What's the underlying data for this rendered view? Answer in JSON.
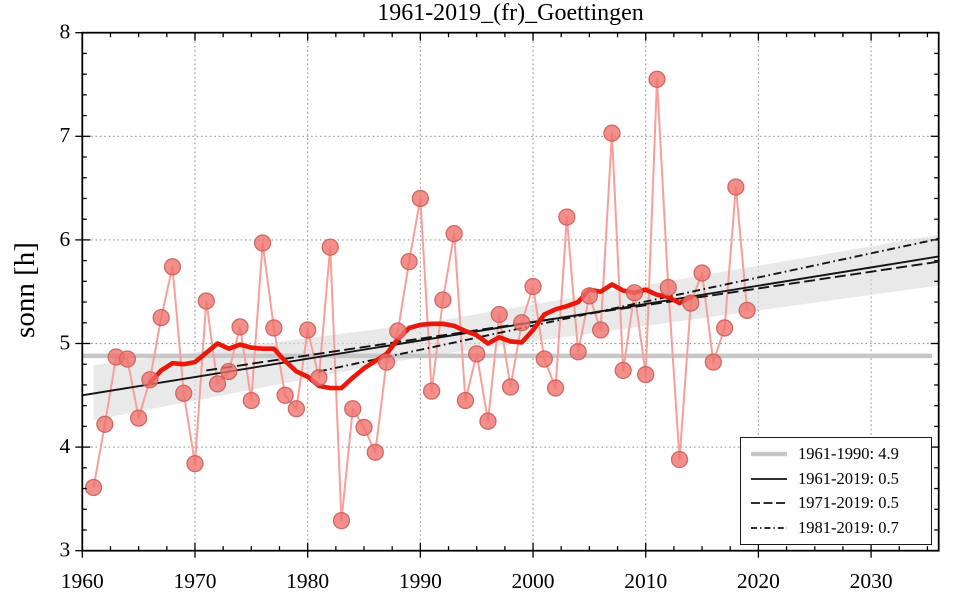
{
  "figure": {
    "title": "1961-2019_(fr)_Goettingen",
    "ylabel": "sonn [h]"
  },
  "chart_data": {
    "type": "line",
    "title": "1961-2019_(fr)_Goettingen",
    "xlabel": "",
    "ylabel": "sonn [h]",
    "xlim": [
      1960,
      2036
    ],
    "ylim": [
      3,
      8
    ],
    "grid": true,
    "x_ticks": [
      1960,
      1970,
      1980,
      1990,
      2000,
      2010,
      2020,
      2030
    ],
    "x_tick_labels": [
      "1960",
      "1970",
      "1980",
      "1990",
      "2000",
      "2010",
      "2020",
      "2030"
    ],
    "y_ticks": [
      3,
      4,
      5,
      6,
      7,
      8
    ],
    "y_tick_labels": [
      "3",
      "4",
      "5",
      "6",
      "7",
      "8"
    ],
    "x_minor_step": 2.5,
    "y_minor_step": 0.2,
    "years": [
      1961,
      1962,
      1963,
      1964,
      1965,
      1966,
      1967,
      1968,
      1969,
      1970,
      1971,
      1972,
      1973,
      1974,
      1975,
      1976,
      1977,
      1978,
      1979,
      1980,
      1981,
      1982,
      1983,
      1984,
      1985,
      1986,
      1987,
      1988,
      1989,
      1990,
      1991,
      1992,
      1993,
      1994,
      1995,
      1996,
      1997,
      1998,
      1999,
      2000,
      2001,
      2002,
      2003,
      2004,
      2005,
      2006,
      2007,
      2008,
      2009,
      2010,
      2011,
      2012,
      2013,
      2014,
      2015,
      2016,
      2017,
      2018,
      2019
    ],
    "annual_values": [
      3.61,
      4.22,
      4.87,
      4.85,
      4.28,
      4.65,
      5.25,
      5.74,
      4.52,
      3.84,
      5.41,
      4.61,
      4.73,
      5.16,
      4.45,
      5.97,
      5.15,
      4.5,
      4.37,
      5.13,
      4.67,
      5.93,
      3.29,
      4.37,
      4.19,
      3.95,
      4.82,
      5.12,
      5.79,
      6.4,
      4.54,
      5.42,
      6.06,
      4.45,
      4.9,
      4.25,
      5.28,
      4.58,
      5.2,
      5.55,
      4.85,
      4.57,
      6.22,
      4.92,
      5.46,
      5.13,
      7.03,
      4.74,
      5.49,
      4.7,
      7.55,
      5.54,
      3.88,
      5.39,
      5.68,
      4.82,
      5.15,
      6.51,
      5.32
    ],
    "smoothed_11yr": {
      "start_year": 1966,
      "values": [
        4.62,
        4.74,
        4.81,
        4.8,
        4.82,
        4.91,
        5.0,
        4.95,
        4.99,
        4.96,
        4.95,
        4.95,
        4.83,
        4.73,
        4.68,
        4.59,
        4.57,
        4.57,
        4.67,
        4.76,
        4.83,
        4.9,
        5.04,
        5.15,
        5.18,
        5.19,
        5.19,
        5.17,
        5.12,
        5.08,
        5.0,
        5.06,
        5.02,
        5.01,
        5.13,
        5.28,
        5.33,
        5.36,
        5.4,
        5.52,
        5.5,
        5.57,
        5.51,
        5.49,
        5.52,
        5.47,
        5.45,
        5.39,
        5.45
      ]
    },
    "reference_mean": {
      "label": "1961-1990: 4.9",
      "value": 4.88,
      "x_from": 1960,
      "x_to": 2035.4
    },
    "trend_lines": [
      {
        "name": "trend-1961-2019",
        "label": "1961-2019: 0.5",
        "style": "solid",
        "x": [
          1960,
          2036
        ],
        "y": [
          4.5,
          5.84
        ]
      },
      {
        "name": "trend-1971-2019",
        "label": "1971-2019: 0.5",
        "style": "dashed",
        "x": [
          1971,
          2036
        ],
        "y": [
          4.74,
          5.79
        ]
      },
      {
        "name": "trend-1981-2019",
        "label": "1981-2019: 0.7",
        "style": "dashdot",
        "x": [
          1981,
          2036
        ],
        "y": [
          4.73,
          6.01
        ]
      }
    ],
    "confidence_band": {
      "upper": [
        [
          1961,
          4.79
        ],
        [
          1990,
          5.19
        ],
        [
          2036,
          6.05
        ]
      ],
      "lower": [
        [
          1961,
          4.26
        ],
        [
          1990,
          4.87
        ],
        [
          2036,
          5.56
        ]
      ]
    },
    "legend": {
      "position": "lower right",
      "items": [
        {
          "label": "1961-1990: 4.9",
          "style": "solid-thick-gray"
        },
        {
          "label": "1961-2019: 0.5",
          "style": "solid-black"
        },
        {
          "label": "1971-2019: 0.5",
          "style": "dashed-black"
        },
        {
          "label": "1981-2019: 0.7",
          "style": "dashdot-black"
        }
      ]
    }
  },
  "colors": {
    "marker_fill": "#ef6f6a",
    "marker_edge": "#cb5f5b",
    "annual_line": "#f79f9b",
    "smoothed_line": "#e8190b",
    "trend_black": "#141414",
    "reference_gray": "#c7c7c7",
    "band_fill": "#dcdcdc",
    "grid": "#999999",
    "spine": "#000000"
  }
}
